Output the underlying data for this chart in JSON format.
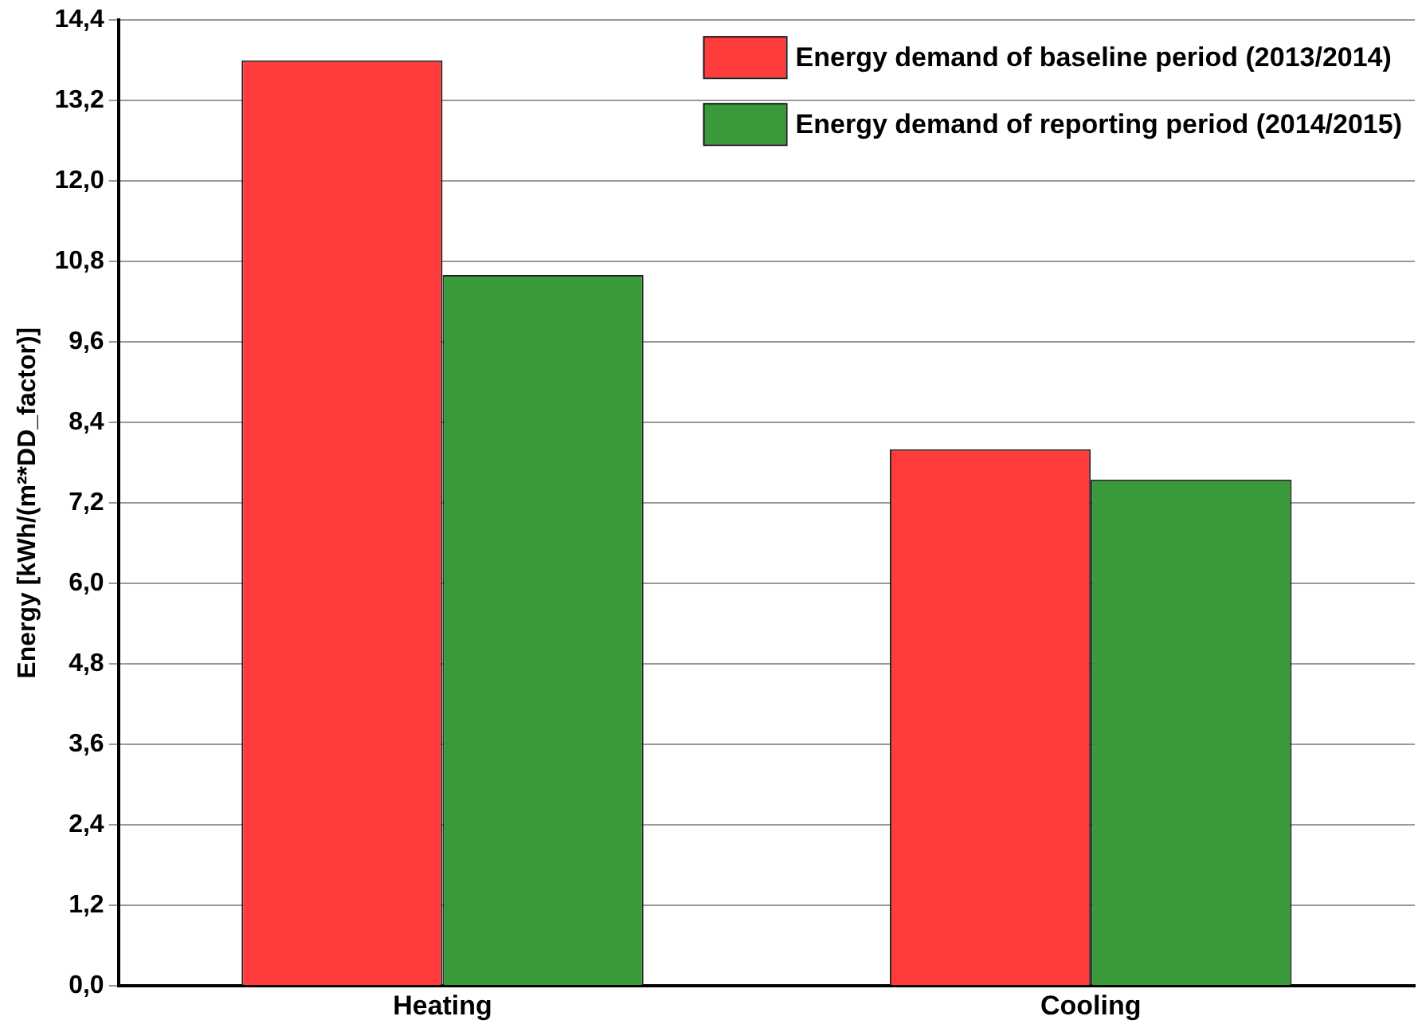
{
  "chart_data": {
    "type": "bar",
    "ylabel": "Energy [kWh/(m²*DD_factor)]",
    "categories": [
      "Heating",
      "Cooling"
    ],
    "series": [
      {
        "name": "Energy demand of baseline period (2013/2014)",
        "color": "#ff3b3b",
        "values": [
          13.8,
          8.0
        ]
      },
      {
        "name": "Energy demand of reporting period (2014/2015)",
        "color": "#3a9a3a",
        "values": [
          10.6,
          7.55
        ]
      }
    ],
    "ylim": [
      0,
      14.4
    ],
    "yticks": [
      {
        "value": 0,
        "label": "0,0"
      },
      {
        "value": 1.2,
        "label": "1,2"
      },
      {
        "value": 2.4,
        "label": "2,4"
      },
      {
        "value": 3.6,
        "label": "3,6"
      },
      {
        "value": 4.8,
        "label": "4,8"
      },
      {
        "value": 6,
        "label": "6,0"
      },
      {
        "value": 7.2,
        "label": "7,2"
      },
      {
        "value": 8.4,
        "label": "8,4"
      },
      {
        "value": 9.6,
        "label": "9,6"
      },
      {
        "value": 10.8,
        "label": "10,8"
      },
      {
        "value": 12,
        "label": "12,0"
      },
      {
        "value": 13.2,
        "label": "13,2"
      },
      {
        "value": 14.4,
        "label": "14,4"
      }
    ],
    "grid": "y",
    "legend": "top right"
  }
}
